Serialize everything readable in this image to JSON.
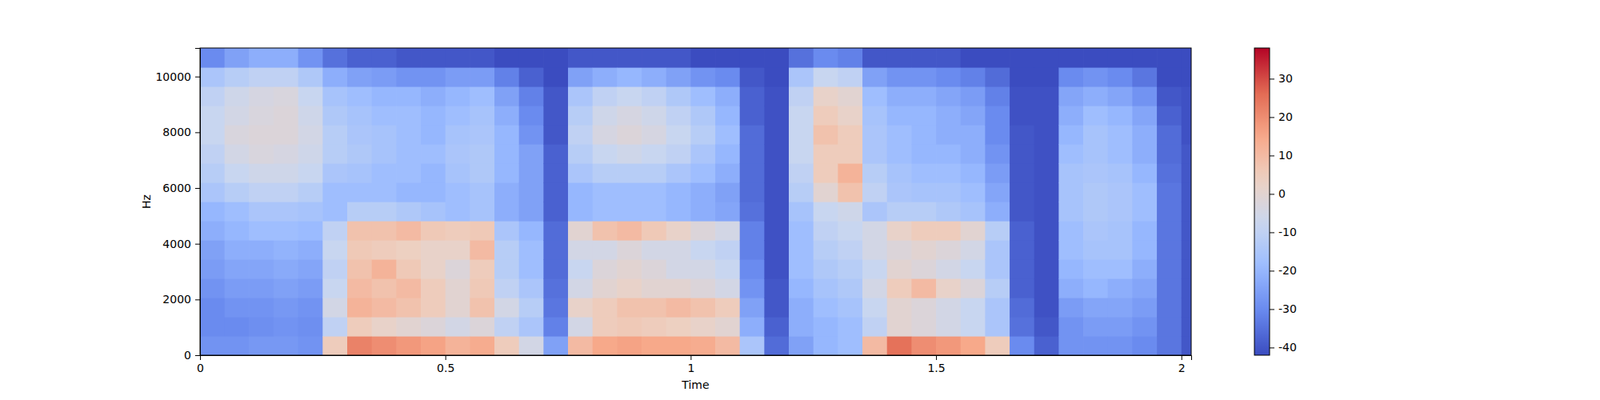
{
  "chart_data": {
    "type": "heatmap",
    "x_label": "Time",
    "y_label": "Hz",
    "xlim": [
      0,
      2.02
    ],
    "ylim": [
      0,
      11025
    ],
    "xticks": [
      0,
      0.5,
      1,
      1.5,
      2
    ],
    "yticks": [
      0,
      2000,
      4000,
      6000,
      8000,
      10000
    ],
    "x": [
      0,
      0.05,
      0.1,
      0.15,
      0.2,
      0.25,
      0.3,
      0.35,
      0.4,
      0.45,
      0.5,
      0.55,
      0.6,
      0.65,
      0.7,
      0.75,
      0.8,
      0.85,
      0.9,
      0.95,
      1.0,
      1.05,
      1.1,
      1.15,
      1.2,
      1.25,
      1.3,
      1.35,
      1.4,
      1.45,
      1.5,
      1.55,
      1.6,
      1.65,
      1.7,
      1.75,
      1.8,
      1.85,
      1.9,
      1.95,
      2.0,
      2.02
    ],
    "y": [
      0,
      689.0625,
      1378.125,
      2067.1875,
      2756.25,
      3445.3125,
      4134.375,
      4823.4375,
      5512.5,
      6201.5625,
      6890.625,
      7579.6875,
      8268.75,
      8957.8125,
      9646.875,
      10335.9375,
      11025
    ],
    "color_range": [
      -42,
      38
    ],
    "color_ticks": [
      -40,
      -30,
      -20,
      -10,
      0,
      10,
      20,
      30
    ],
    "z": [
      [
        -28,
        -30,
        -30,
        -28,
        -26,
        -25,
        -22,
        -20,
        -15,
        -12,
        -10,
        -8,
        -8,
        -10,
        -15,
        -30
      ],
      [
        -28,
        -30,
        -28,
        -26,
        -24,
        -22,
        -20,
        -18,
        -12,
        -8,
        -5,
        -3,
        -5,
        -6,
        -12,
        -25
      ],
      [
        -27,
        -29,
        -28,
        -26,
        -24,
        -22,
        -18,
        -15,
        -10,
        -6,
        -3,
        -2,
        -3,
        -4,
        -10,
        -22
      ],
      [
        -27,
        -28,
        -27,
        -25,
        -23,
        -21,
        -18,
        -15,
        -10,
        -6,
        -4,
        -2,
        -2,
        -3,
        -10,
        -22
      ],
      [
        -28,
        -29,
        -28,
        -26,
        -24,
        -22,
        -19,
        -16,
        -12,
        -8,
        -6,
        -5,
        -6,
        -8,
        -14,
        -28
      ],
      [
        5,
        -10,
        -5,
        -8,
        -10,
        -8,
        -10,
        -18,
        -18,
        -15,
        -12,
        -12,
        -14,
        -16,
        -22,
        -35
      ],
      [
        22,
        5,
        12,
        10,
        8,
        6,
        8,
        -12,
        -18,
        -16,
        -14,
        -15,
        -16,
        -18,
        -25,
        -38
      ],
      [
        20,
        2,
        10,
        8,
        12,
        5,
        8,
        -12,
        -18,
        -18,
        -16,
        -16,
        -18,
        -20,
        -26,
        -38
      ],
      [
        18,
        0,
        8,
        10,
        6,
        4,
        10,
        -14,
        -20,
        -18,
        -18,
        -18,
        -18,
        -20,
        -28,
        -40
      ],
      [
        16,
        -2,
        5,
        5,
        2,
        2,
        6,
        -16,
        -20,
        -20,
        -18,
        -20,
        -20,
        -22,
        -28,
        -40
      ],
      [
        12,
        -5,
        0,
        0,
        -2,
        2,
        5,
        -18,
        -18,
        -16,
        -15,
        -16,
        -18,
        -20,
        -26,
        -40
      ],
      [
        14,
        -2,
        8,
        6,
        5,
        10,
        6,
        -16,
        -16,
        -14,
        -14,
        -15,
        -16,
        -18,
        -26,
        -40
      ],
      [
        5,
        -10,
        -5,
        -10,
        -12,
        -12,
        -15,
        -22,
        -22,
        -20,
        -20,
        -20,
        -22,
        -25,
        -32,
        -42
      ],
      [
        -5,
        -15,
        -12,
        -15,
        -18,
        -18,
        -20,
        -25,
        -25,
        -25,
        -25,
        -28,
        -30,
        -32,
        -38,
        -42
      ],
      [
        -25,
        -32,
        -34,
        -35,
        -36,
        -36,
        -36,
        -38,
        -38,
        -38,
        -38,
        -40,
        -40,
        -40,
        -42,
        -42
      ],
      [
        10,
        -5,
        2,
        -5,
        -8,
        -5,
        0,
        -20,
        -20,
        -15,
        -12,
        -10,
        -12,
        -15,
        -25,
        -40
      ],
      [
        15,
        5,
        5,
        0,
        -2,
        -5,
        8,
        -18,
        -18,
        -12,
        -8,
        -4,
        -6,
        -10,
        -22,
        -40
      ],
      [
        16,
        6,
        8,
        2,
        0,
        -2,
        10,
        -18,
        -18,
        -12,
        -6,
        -2,
        -4,
        -8,
        -20,
        -40
      ],
      [
        15,
        5,
        8,
        0,
        -2,
        -5,
        6,
        -18,
        -18,
        -12,
        -8,
        -4,
        -6,
        -10,
        -22,
        -40
      ],
      [
        15,
        4,
        10,
        0,
        -5,
        -5,
        2,
        -20,
        -20,
        -15,
        -10,
        -8,
        -10,
        -14,
        -25,
        -40
      ],
      [
        14,
        2,
        8,
        -2,
        -5,
        -8,
        -2,
        -22,
        -22,
        -18,
        -15,
        -12,
        -14,
        -18,
        -28,
        -42
      ],
      [
        10,
        0,
        5,
        -5,
        -8,
        -10,
        -5,
        -24,
        -25,
        -22,
        -20,
        -18,
        -20,
        -22,
        -30,
        -42
      ],
      [
        -15,
        -22,
        -25,
        -28,
        -30,
        -32,
        -32,
        -35,
        -36,
        -36,
        -36,
        -36,
        -38,
        -38,
        -40,
        -42
      ],
      [
        -36,
        -38,
        -40,
        -40,
        -41,
        -41,
        -41,
        -41,
        -41,
        -41,
        -41,
        -41,
        -41,
        -41,
        -42,
        -42
      ],
      [
        -25,
        -22,
        -22,
        -20,
        -18,
        -18,
        -18,
        -16,
        -12,
        -10,
        -8,
        -8,
        -8,
        -10,
        -15,
        -35
      ],
      [
        -20,
        -20,
        -18,
        -16,
        -14,
        -12,
        -10,
        -8,
        0,
        5,
        5,
        8,
        5,
        2,
        -8,
        -30
      ],
      [
        -18,
        -18,
        -16,
        -14,
        -12,
        -10,
        -8,
        -6,
        8,
        12,
        5,
        5,
        2,
        0,
        -10,
        -32
      ],
      [
        10,
        -10,
        -8,
        -5,
        -8,
        -5,
        -5,
        -15,
        -10,
        -12,
        -15,
        -15,
        -16,
        -18,
        -25,
        -40
      ],
      [
        25,
        0,
        0,
        5,
        0,
        -2,
        2,
        -12,
        -15,
        -16,
        -18,
        -18,
        -20,
        -22,
        -28,
        -40
      ],
      [
        20,
        -2,
        -2,
        10,
        -2,
        0,
        5,
        -12,
        -16,
        -18,
        -20,
        -20,
        -20,
        -22,
        -28,
        -40
      ],
      [
        18,
        -5,
        -5,
        2,
        -5,
        -2,
        5,
        -14,
        -16,
        -18,
        -20,
        -22,
        -22,
        -24,
        -30,
        -40
      ],
      [
        15,
        -8,
        -8,
        -2,
        -8,
        -5,
        0,
        -16,
        -18,
        -20,
        -22,
        -22,
        -24,
        -26,
        -32,
        -42
      ],
      [
        5,
        -15,
        -15,
        -12,
        -15,
        -15,
        -12,
        -22,
        -24,
        -26,
        -28,
        -30,
        -30,
        -32,
        -36,
        -42
      ],
      [
        -30,
        -35,
        -36,
        -38,
        -38,
        -38,
        -38,
        -40,
        -40,
        -40,
        -40,
        -40,
        -41,
        -41,
        -42,
        -42
      ],
      [
        -38,
        -40,
        -41,
        -41,
        -41,
        -41,
        -41,
        -41,
        -41,
        -41,
        -41,
        -41,
        -41,
        -41,
        -42,
        -42
      ],
      [
        -28,
        -28,
        -26,
        -22,
        -20,
        -18,
        -18,
        -16,
        -16,
        -16,
        -18,
        -20,
        -22,
        -24,
        -30,
        -42
      ],
      [
        -28,
        -26,
        -24,
        -20,
        -18,
        -16,
        -15,
        -14,
        -14,
        -15,
        -16,
        -16,
        -18,
        -22,
        -28,
        -42
      ],
      [
        -28,
        -26,
        -24,
        -22,
        -18,
        -16,
        -16,
        -15,
        -15,
        -16,
        -18,
        -18,
        -20,
        -24,
        -30,
        -42
      ],
      [
        -30,
        -28,
        -26,
        -24,
        -22,
        -20,
        -20,
        -18,
        -18,
        -20,
        -22,
        -22,
        -24,
        -28,
        -34,
        -42
      ],
      [
        -34,
        -34,
        -34,
        -34,
        -34,
        -34,
        -34,
        -34,
        -34,
        -35,
        -36,
        -36,
        -38,
        -40,
        -42,
        -42
      ],
      [
        -40,
        -40,
        -40,
        -40,
        -40,
        -40,
        -40,
        -40,
        -40,
        -40,
        -40,
        -41,
        -41,
        -41,
        -42,
        -42
      ]
    ]
  }
}
